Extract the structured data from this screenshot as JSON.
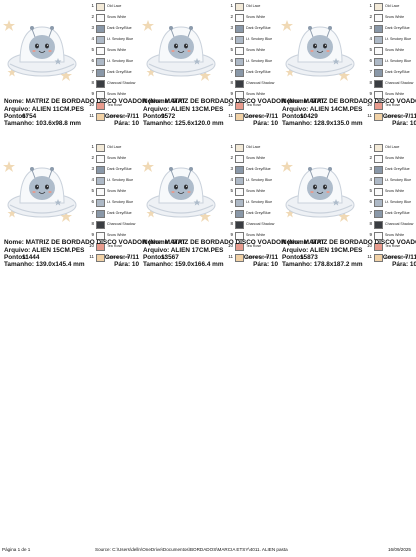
{
  "cells": [
    {
      "title": "Nome: MATRIZ DE BORDADO DISCO VOADOR (Nome: MAT",
      "file": "Arquivo: ALIEN 11CM.PES",
      "points_label": "Pontos:",
      "points": "6754",
      "colors": "Cores: 7/11",
      "size": "Tamanho: 103.6x98.8 mm",
      "stops": "Pára: 10"
    },
    {
      "title": "Nome: MATRIZ DE BORDADO DISCO VOADOR (Nome: MAT",
      "file": "Arquivo: ALIEN 13CM.PES",
      "points_label": "Pontos:",
      "points": "9572",
      "colors": "Cores: 7/11",
      "size": "Tamanho: 125.6x120.0 mm",
      "stops": "Pára: 10"
    },
    {
      "title": "Nome: MATRIZ DE BORDADO DISCO VOADOR (Nome: MAT",
      "file": "Arquivo: ALIEN 14CM.PES",
      "points_label": "Pontos:",
      "points": "10429",
      "colors": "Cores: 7/11",
      "size": "Tamanho: 128.9x135.0 mm",
      "stops": "Pára: 10"
    },
    {
      "title": "Nome: MATRIZ DE BORDADO DISCO VOADOR (Nome: MAT",
      "file": "Arquivo: ALIEN 15CM.PES",
      "points_label": "Pontos:",
      "points": "11444",
      "colors": "Cores: 7/11",
      "size": "Tamanho: 139.0x145.4 mm",
      "stops": "Pára: 10"
    },
    {
      "title": "Nome: MATRIZ DE BORDADO DISCO VOADOR (Nome: MAT",
      "file": "Arquivo: ALIEN 17CM.PES",
      "points_label": "Pontos:",
      "points": "13567",
      "colors": "Cores: 7/11",
      "size": "Tamanho: 159.0x166.4 mm",
      "stops": "Pára: 10"
    },
    {
      "title": "Nome: MATRIZ DE BORDADO DISCO VOADOR (Nome: MAT",
      "file": "Arquivo: ALIEN 19CM.PES",
      "points_label": "Pontos:",
      "points": "15873",
      "colors": "Cores: 7/11",
      "size": "Tamanho: 178.8x187.2 mm",
      "stops": "Pára: 10"
    }
  ],
  "legend": [
    {
      "num": "1",
      "name": "Old Lace",
      "color": "#f3ead8"
    },
    {
      "num": "2",
      "name": "Snow White",
      "color": "#fbfbfb"
    },
    {
      "num": "3",
      "name": "Dark Grey/Blue",
      "color": "#8a98a8"
    },
    {
      "num": "4",
      "name": "Lt. Smokey Blue",
      "color": "#aeb9c6"
    },
    {
      "num": "5",
      "name": "Snow White",
      "color": "#fbfbfb"
    },
    {
      "num": "6",
      "name": "Lt. Smokey Blue",
      "color": "#aeb9c6"
    },
    {
      "num": "7",
      "name": "Dark Grey/Blue",
      "color": "#8a98a8"
    },
    {
      "num": "8",
      "name": "Charcoal Shadow",
      "color": "#3a3d42"
    },
    {
      "num": "9",
      "name": "Snow White",
      "color": "#fbfbfb"
    },
    {
      "num": "10",
      "name": "Tea Rose",
      "color": "#e89a8c"
    },
    {
      "num": "11",
      "name": "Apricot Cream",
      "color": "#f2d2a6"
    }
  ],
  "footer": {
    "page": "Página 1 de 1",
    "source": "Source: C:\\Users\\delln\\OneDrive\\Documentos\\BORDADOS\\MARCIA ETSY\\4011. ALIEN pasta",
    "date": "16/09/2025"
  },
  "colors": {
    "body": "#aebccb",
    "body_dark": "#8d9cad",
    "saucer": "#eef1f5",
    "saucer_rim": "#c9d1db",
    "star": "#f0d9b5",
    "antenna_ball": "#8d9cad"
  }
}
